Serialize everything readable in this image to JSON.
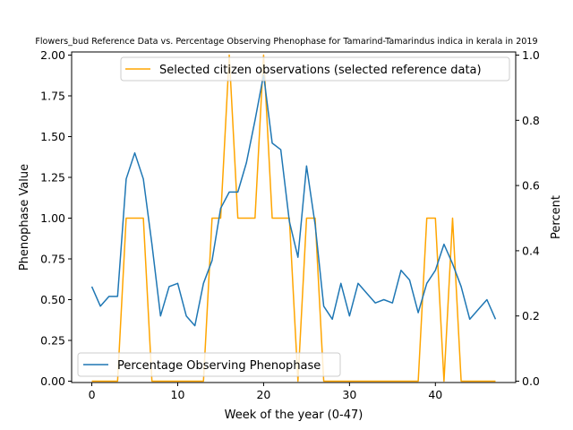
{
  "chart_data": {
    "type": "line",
    "title": "Flowers_bud Reference Data vs. Percentage Observing Phenophase for Tamarind-Tamarindus indica in kerala in 2019",
    "xlabel": "Week of the year (0-47)",
    "ylabel_left": "Phenophase Value",
    "ylabel_right": "Percent",
    "xlim": [
      -2.35,
      49.35
    ],
    "ylim_left": [
      0,
      2.0
    ],
    "ylim_right": [
      0,
      1.0
    ],
    "x_ticks": [
      0,
      10,
      20,
      30,
      40
    ],
    "y_ticks_left": [
      "0.00",
      "0.25",
      "0.50",
      "0.75",
      "1.00",
      "1.25",
      "1.50",
      "1.75",
      "2.00"
    ],
    "y_ticks_right": [
      "0.0",
      "0.2",
      "0.4",
      "0.6",
      "0.8",
      "1.0"
    ],
    "grid": false,
    "series": [
      {
        "name": "Selected citizen observations (selected reference data)",
        "axis": "left",
        "color": "#ffa500",
        "legend_position": "upper-right",
        "x": [
          0,
          1,
          2,
          3,
          4,
          5,
          6,
          7,
          8,
          9,
          10,
          11,
          12,
          13,
          14,
          15,
          16,
          17,
          18,
          19,
          20,
          21,
          22,
          23,
          24,
          25,
          26,
          27,
          28,
          29,
          30,
          31,
          32,
          33,
          34,
          35,
          36,
          37,
          38,
          39,
          40,
          41,
          42,
          43,
          44,
          45,
          46,
          47
        ],
        "y": [
          0,
          0,
          0,
          0,
          1,
          1,
          1,
          0,
          0,
          0,
          0,
          0,
          0,
          0,
          1,
          1,
          2,
          1,
          1,
          1,
          2,
          1,
          1,
          1,
          0,
          1,
          1,
          0,
          0,
          0,
          0,
          0,
          0,
          0,
          0,
          0,
          0,
          0,
          0,
          1,
          1,
          0,
          1,
          0,
          0,
          0,
          0,
          0
        ]
      },
      {
        "name": "Percentage Observing Phenophase",
        "axis": "right",
        "color": "#1f77b4",
        "legend_position": "lower-left",
        "x": [
          0,
          1,
          2,
          3,
          4,
          5,
          6,
          7,
          8,
          9,
          10,
          11,
          12,
          13,
          14,
          15,
          16,
          17,
          18,
          19,
          20,
          21,
          22,
          23,
          24,
          25,
          26,
          27,
          28,
          29,
          30,
          31,
          32,
          33,
          34,
          35,
          36,
          37,
          38,
          39,
          40,
          41,
          42,
          43,
          44,
          45,
          46,
          47
        ],
        "y": [
          0.29,
          0.23,
          0.26,
          0.26,
          0.62,
          0.7,
          0.62,
          0.42,
          0.2,
          0.29,
          0.3,
          0.2,
          0.17,
          0.3,
          0.37,
          0.53,
          0.58,
          0.58,
          0.67,
          0.8,
          0.94,
          0.73,
          0.71,
          0.49,
          0.38,
          0.66,
          0.48,
          0.23,
          0.19,
          0.3,
          0.2,
          0.3,
          0.27,
          0.24,
          0.25,
          0.24,
          0.34,
          0.31,
          0.21,
          0.3,
          0.34,
          0.42,
          0.36,
          0.29,
          0.19,
          0.22,
          0.25,
          0.19
        ]
      }
    ]
  }
}
